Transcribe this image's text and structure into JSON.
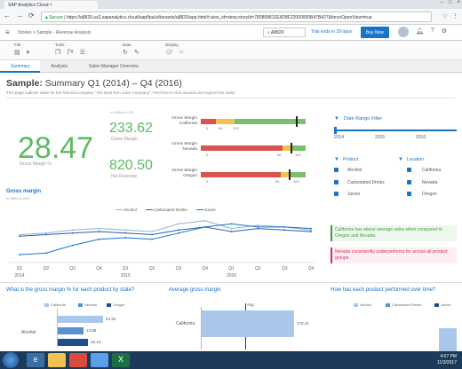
{
  "browser": {
    "tab_title": "SAP Analytics Cloud",
    "secure_label": "Secure",
    "url": "https://a8820.us2.sapanalytics.cloud/sap/fpa/ui/tenants/a8820/app.html#;view_id=story;storyId=780808812E4D8F22000000B47B427&forceOpenView=true",
    "nav": {
      "back": "←",
      "forward": "→",
      "reload": "⟳"
    }
  },
  "shell": {
    "menu_icon": "hamburger-icon",
    "breadcrumb": [
      "Stories",
      "Sample - Revenue Analysis"
    ],
    "tenant": "A8820",
    "trial_text": "Trial ends in 29 days",
    "buy_now": "Buy Now"
  },
  "toolbar": {
    "groups": [
      {
        "label": "File",
        "icons": [
          "file-icon",
          "save-icon",
          "caret-icon"
        ]
      },
      {
        "label": "Tools",
        "icons": [
          "copy-icon",
          "formula-icon",
          "list-icon"
        ]
      },
      {
        "label": "Data",
        "icons": [
          "refresh-icon",
          "edit-icon"
        ]
      },
      {
        "label": "Display",
        "icons": [
          "comment-icon",
          "bookmark-icon"
        ]
      }
    ]
  },
  "page_tabs": [
    "Summary",
    "Analysis",
    "Sales Manager Overview"
  ],
  "page": {
    "title_prefix": "Sample:",
    "title_rest": " Summary Q1 (2014) – Q4 (2016)",
    "subtitle": "This page outlines sales for the fictional company \"The Best Run Juice Company\". Feel free to click around and explore the stats!"
  },
  "kpis": {
    "gross_margin_pct": "28.47",
    "gross_margin_pct_label": "Gross Margin %",
    "unit": "in Millions USD",
    "gross_margin": "233.62",
    "gross_margin_label": "Gross Margin",
    "net_revenue": "820.50",
    "net_revenue_label": "Net Revenue"
  },
  "bullets": [
    {
      "label": "Gross Margin California",
      "value": 0.91,
      "ticks": [
        "0",
        "50",
        "100"
      ]
    },
    {
      "label": "Gross Margin Nevada",
      "value": 0.86,
      "ticks": [
        "0",
        "80",
        "100"
      ]
    },
    {
      "label": "Gross Margin Oregon",
      "value": 0.84,
      "ticks": [
        "0",
        "80",
        "100"
      ]
    }
  ],
  "filters": {
    "date_title": "Date Range Filter",
    "years": [
      "2014",
      "2015",
      "2016"
    ],
    "product_title": "Product",
    "products": [
      "Alcohol",
      "Carbonated Drinks",
      "Juices"
    ],
    "location_title": "Location",
    "locations": [
      "California",
      "Nevada",
      "Oregon"
    ]
  },
  "line_chart": {
    "title": "Gross margin",
    "unit": "in Millions USD",
    "quarters": [
      "Q1",
      "Q2",
      "Q3",
      "Q4",
      "Q1",
      "Q2",
      "Q3",
      "Q4",
      "Q1",
      "Q2",
      "Q3",
      "Q4"
    ],
    "years": [
      "2014",
      "2015",
      "2016"
    ]
  },
  "chart_data": {
    "type": "line",
    "title": "Gross margin",
    "x": [
      "Q1 2014",
      "Q2 2014",
      "Q3 2014",
      "Q4 2014",
      "Q1 2015",
      "Q2 2015",
      "Q3 2015",
      "Q4 2015",
      "Q1 2016",
      "Q2 2016",
      "Q3 2016",
      "Q4 2016"
    ],
    "series": [
      {
        "name": "Alcohol",
        "color": "#8fb3d9",
        "values": [
          17,
          18,
          20,
          21,
          20,
          19,
          24,
          26,
          21,
          23,
          22,
          20
        ]
      },
      {
        "name": "Carbonated Drinks",
        "color": "#2f5f9e",
        "values": [
          16,
          17,
          18,
          19,
          18,
          17,
          20,
          22,
          19,
          21,
          20,
          19
        ]
      },
      {
        "name": "Juices",
        "color": "#1a73c8",
        "values": [
          4,
          5,
          10,
          14,
          15,
          14,
          18,
          22,
          24,
          22,
          22,
          21
        ]
      }
    ],
    "ylim": [
      0,
      30
    ]
  },
  "notes": [
    {
      "text": "California has above average sales when compared to Oregon and Nevada.",
      "color": "#3c9e3c",
      "bg": "#eef7ee"
    },
    {
      "text": "Nevada consistently underperforms for across all product groups.",
      "color": "#d32f5a",
      "bg": "#fdeef2"
    }
  ],
  "bottom": {
    "q1": "What is the gross margin % for each product by state?",
    "q2": "Average gross margin",
    "q3": "How has each product performed over time?",
    "state_legend": [
      "California",
      "Nevada",
      "Oregon"
    ],
    "row_label": "Alcohol",
    "state_values": [
      "24.32",
      "13.88",
      "16.13"
    ],
    "avg_label": "Avg",
    "avg_row_label": "California",
    "avg_value": "179.41",
    "product_legend": [
      "Alcohol",
      "Carbonated Drinks",
      "Juices"
    ]
  },
  "taskbar": {
    "time": "4:07 PM",
    "date": "11/3/2017"
  }
}
